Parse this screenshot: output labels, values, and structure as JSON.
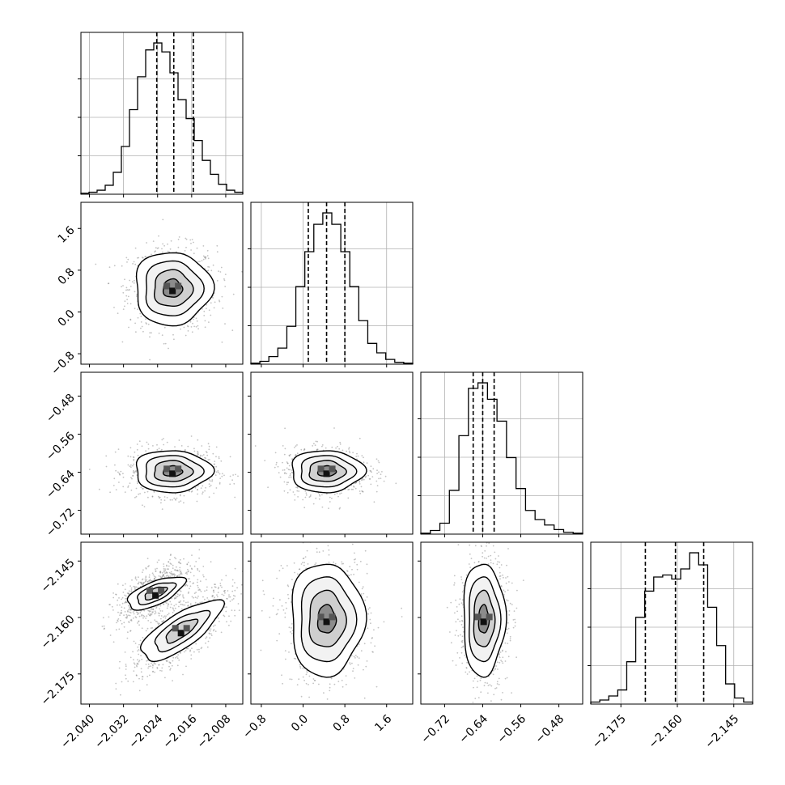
{
  "chart_data": {
    "type": "corner",
    "title": "",
    "params": [
      {
        "range": [
          -2.042,
          -2.004
        ],
        "ticks": [
          -2.04,
          -2.032,
          -2.024,
          -2.016,
          -2.008
        ],
        "tick_labels": [
          "−2.040",
          "−2.032",
          "−2.024",
          "−2.016",
          "−2.008"
        ],
        "quantiles": [
          -2.0242,
          -2.0202,
          -2.0156
        ],
        "center": -2.0205,
        "sigma": 0.0045
      },
      {
        "range": [
          -1.0,
          2.1
        ],
        "ticks": [
          -0.8,
          0.0,
          0.8,
          1.6
        ],
        "tick_labels": [
          "−0.8",
          "0.0",
          "0.8",
          "1.6"
        ],
        "quantiles": [
          0.1,
          0.45,
          0.8
        ],
        "center": 0.45,
        "sigma": 0.35
      },
      {
        "range": [
          -0.77,
          -0.43
        ],
        "ticks": [
          -0.72,
          -0.64,
          -0.56,
          -0.48
        ],
        "tick_labels": [
          "−0.72",
          "−0.64",
          "−0.56",
          "−0.48"
        ],
        "quantiles": [
          -0.66,
          -0.64,
          -0.616
        ],
        "center": -0.638,
        "sigma": 0.022
      },
      {
        "range": [
          -2.183,
          -2.14
        ],
        "ticks": [
          -2.175,
          -2.16,
          -2.145
        ],
        "tick_labels": [
          "−2.175",
          "−2.160",
          "−2.145"
        ],
        "quantiles": [
          -2.1685,
          -2.1605,
          -2.153
        ],
        "center": -2.1605,
        "sigma": 0.0075
      }
    ],
    "histograms": [
      {
        "edges_range": [
          -2.042,
          -2.004
        ],
        "counts": [
          1,
          2,
          4,
          9,
          22,
          48,
          85,
          118,
          145,
          152,
          143,
          122,
          95,
          76,
          54,
          34,
          20,
          10,
          4,
          2
        ]
      },
      {
        "edges_range": [
          -1.0,
          2.1
        ],
        "counts": [
          1,
          3,
          8,
          17,
          40,
          82,
          119,
          148,
          160,
          148,
          119,
          82,
          46,
          22,
          12,
          5,
          2,
          1
        ]
      },
      {
        "edges_range": [
          -0.77,
          -0.43
        ],
        "counts": [
          1,
          4,
          12,
          48,
          108,
          160,
          166,
          148,
          124,
          84,
          50,
          26,
          16,
          10,
          5,
          2,
          1
        ]
      },
      {
        "edges_range": [
          -2.183,
          -2.14
        ],
        "counts": [
          2,
          4,
          8,
          14,
          42,
          86,
          112,
          126,
          128,
          124,
          134,
          150,
          138,
          96,
          58,
          20,
          6,
          2
        ]
      }
    ],
    "contours": [
      {
        "row": 1,
        "col": 0,
        "x_center": -2.0205,
        "y_center": 0.45,
        "x_sigma": 0.0045,
        "y_sigma": 0.35,
        "levels": [
          0.5,
          1.0,
          1.5,
          2.0
        ]
      },
      {
        "row": 2,
        "col": 0,
        "x_center": -2.0205,
        "y_center": -0.638,
        "x_sigma": 0.0045,
        "y_sigma": 0.022,
        "levels": [
          0.5,
          1.0,
          1.5,
          2.0
        ]
      },
      {
        "row": 2,
        "col": 1,
        "x_center": 0.45,
        "y_center": -0.638,
        "x_sigma": 0.35,
        "y_sigma": 0.022,
        "levels": [
          0.5,
          1.0,
          1.5,
          2.0
        ]
      },
      {
        "row": 3,
        "col": 0,
        "blobs": [
          {
            "x_center": -2.0245,
            "y_center": -2.1535,
            "x_sigma": 0.0038,
            "y_sigma": 0.0038,
            "tilt": 0.55
          },
          {
            "x_center": -2.0185,
            "y_center": -2.1635,
            "x_sigma": 0.0052,
            "y_sigma": 0.0055,
            "tilt": 0.8
          }
        ],
        "levels": [
          0.7,
          1.2,
          1.8
        ]
      },
      {
        "row": 3,
        "col": 1,
        "x_center": 0.45,
        "y_center": -2.1605,
        "x_sigma": 0.35,
        "y_sigma": 0.0075,
        "levels": [
          0.5,
          1.0,
          1.5,
          2.0
        ]
      },
      {
        "row": 3,
        "col": 2,
        "x_center": -0.638,
        "y_center": -2.1605,
        "x_sigma": 0.022,
        "y_sigma": 0.0075,
        "levels": [
          0.5,
          1.0,
          1.5,
          2.0
        ]
      }
    ],
    "xlabel": "",
    "ylabel": "",
    "legend": "none",
    "grid": "on (histogram panels only)"
  }
}
